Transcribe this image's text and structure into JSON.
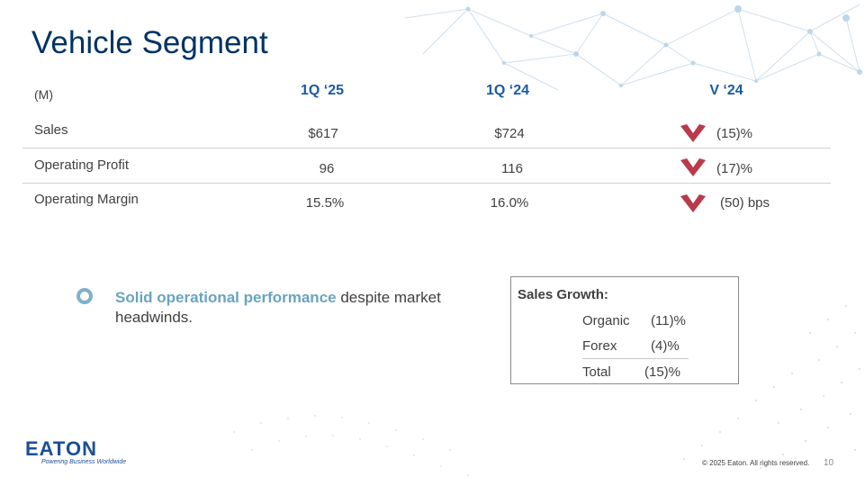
{
  "slide": {
    "title": "Vehicle Segment",
    "page_number": "10",
    "copyright": "© 2025 Eaton. All rights reserved."
  },
  "table": {
    "unit_label": "(M)",
    "columns": [
      "1Q ‘25",
      "1Q ‘24",
      "V ‘24"
    ],
    "rows": [
      {
        "label": "Sales",
        "q25": "$617",
        "q24": "$724",
        "variance": "(15)%",
        "direction": "down"
      },
      {
        "label": "Operating Profit",
        "q25": "96",
        "q24": "116",
        "variance": "(17)%",
        "direction": "down"
      },
      {
        "label": "Operating Margin",
        "q25": "15.5%",
        "q24": "16.0%",
        "variance": "(50) bps",
        "direction": "down"
      }
    ],
    "down_arrow_color": "#b83a4b"
  },
  "bullet": {
    "highlight": "Solid operational performance",
    "rest": " despite market headwinds."
  },
  "sales_growth": {
    "title": "Sales Growth:",
    "items": [
      {
        "label": "Organic",
        "value": "(11)%"
      },
      {
        "label": "Forex",
        "value": "(4)%"
      },
      {
        "label": "Total",
        "value": "(15)%"
      }
    ]
  },
  "logo": {
    "name": "EATON",
    "tagline": "Powering Business Worldwide"
  },
  "colors": {
    "title": "#003366",
    "header": "#1b5aa6",
    "accent": "#6aa4bf"
  }
}
